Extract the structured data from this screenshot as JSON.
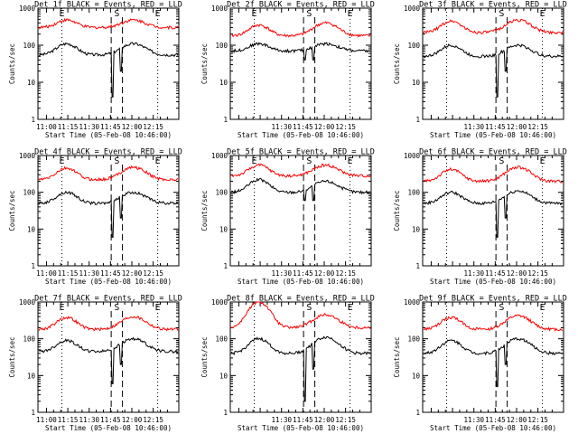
{
  "figure": {
    "background": "#ffffff",
    "colors": {
      "events": "#000000",
      "lld": "#ff0000",
      "axes": "#000000"
    }
  },
  "chart_data": [
    {
      "type": "line",
      "title": "Det 1f BLACK = Events, RED = LLD",
      "xlabel": "Start Time (05-Feb-08 10:46:00)",
      "ylabel": "Counts/sec",
      "x_ticks": [
        "11:00",
        "11:15",
        "11:30",
        "11:45",
        "12:00",
        "12:15"
      ],
      "y_ticks": [
        "1",
        "10",
        "100",
        "1000"
      ],
      "yscale": "log",
      "ylim": [
        1,
        1000
      ],
      "markers": [
        "E",
        "S",
        "E"
      ],
      "series": [
        {
          "color": "#000000",
          "base": 55,
          "peaks": [
            110,
            110
          ],
          "dips": [
            4,
            20
          ]
        },
        {
          "color": "#ff0000",
          "base": 300,
          "peaks": [
            480,
            480
          ],
          "dips": []
        }
      ]
    },
    {
      "type": "line",
      "title": "Det 2f BLACK = Events, RED = LLD",
      "xlabel": "Start Time (05-Feb-08 10:46:00)",
      "ylabel": "Counts/sec",
      "x_ticks": [
        "11:30",
        "11:45",
        "12:00",
        "12:15"
      ],
      "y_ticks": [
        "1",
        "10",
        "100",
        "1000"
      ],
      "yscale": "log",
      "ylim": [
        1,
        1000
      ],
      "markers": [
        "E",
        "S",
        "E"
      ],
      "series": [
        {
          "color": "#000000",
          "base": 70,
          "peaks": [
            110,
            110
          ],
          "dips": [
            40,
            40
          ]
        },
        {
          "color": "#ff0000",
          "base": 180,
          "peaks": [
            350,
            400
          ],
          "dips": []
        }
      ]
    },
    {
      "type": "line",
      "title": "Det 3f BLACK = Events, RED = LLD",
      "xlabel": "Start Time (05-Feb-08 10:46:00)",
      "ylabel": "Counts/sec",
      "x_ticks": [
        "11:30",
        "11:45",
        "12:00",
        "12:15"
      ],
      "y_ticks": [
        "1",
        "10",
        "100",
        "1000"
      ],
      "yscale": "log",
      "ylim": [
        1,
        1000
      ],
      "markers": [
        "S",
        "E"
      ],
      "series": [
        {
          "color": "#000000",
          "base": 50,
          "peaks": [
            100,
            100
          ],
          "dips": [
            4,
            20
          ]
        },
        {
          "color": "#ff0000",
          "base": 220,
          "peaks": [
            450,
            480
          ],
          "dips": []
        }
      ]
    },
    {
      "type": "line",
      "title": "Det 4f BLACK = Events, RED = LLD",
      "xlabel": "Start Time (05-Feb-08 10:46:00)",
      "ylabel": "Counts/sec",
      "x_ticks": [
        "11:00",
        "11:15",
        "11:30",
        "11:45",
        "12:00",
        "12:15"
      ],
      "y_ticks": [
        "1",
        "10",
        "100",
        "1000"
      ],
      "yscale": "log",
      "ylim": [
        1,
        1000
      ],
      "markers": [
        "E",
        "S",
        "E"
      ],
      "series": [
        {
          "color": "#000000",
          "base": 50,
          "peaks": [
            100,
            100
          ],
          "dips": [
            6,
            20
          ]
        },
        {
          "color": "#ff0000",
          "base": 220,
          "peaks": [
            450,
            480
          ],
          "dips": []
        }
      ]
    },
    {
      "type": "line",
      "title": "Det 5f BLACK = Events, RED = LLD",
      "xlabel": "Start Time (05-Feb-08 10:46:00)",
      "ylabel": "Counts/sec",
      "x_ticks": [
        "11:30",
        "11:45",
        "12:00",
        "12:15"
      ],
      "y_ticks": [
        "1",
        "10",
        "100",
        "1000"
      ],
      "yscale": "log",
      "ylim": [
        1,
        1000
      ],
      "markers": [
        "E",
        "S",
        "E"
      ],
      "series": [
        {
          "color": "#000000",
          "base": 100,
          "peaks": [
            220,
            200
          ],
          "dips": [
            60,
            60
          ]
        },
        {
          "color": "#ff0000",
          "base": 280,
          "peaks": [
            550,
            550
          ],
          "dips": []
        }
      ]
    },
    {
      "type": "line",
      "title": "Det 6f BLACK = Events, RED = LLD",
      "xlabel": "Start Time (05-Feb-08 10:46:00)",
      "ylabel": "Counts/sec",
      "x_ticks": [
        "11:30",
        "11:45",
        "12:00",
        "12:15"
      ],
      "y_ticks": [
        "1",
        "10",
        "100",
        "1000"
      ],
      "yscale": "log",
      "ylim": [
        1,
        1000
      ],
      "markers": [
        "S",
        "E"
      ],
      "series": [
        {
          "color": "#000000",
          "base": 50,
          "peaks": [
            100,
            110
          ],
          "dips": [
            6,
            20
          ]
        },
        {
          "color": "#ff0000",
          "base": 200,
          "peaks": [
            420,
            480
          ],
          "dips": []
        }
      ]
    },
    {
      "type": "line",
      "title": "Det 7f BLACK = Events, RED = LLD",
      "xlabel": "Start Time (05-Feb-08 10:46:00)",
      "ylabel": "Counts/sec",
      "x_ticks": [
        "11:00",
        "11:15",
        "11:30",
        "11:45",
        "12:00",
        "12:15"
      ],
      "y_ticks": [
        "1",
        "10",
        "100",
        "1000"
      ],
      "yscale": "log",
      "ylim": [
        1,
        1000
      ],
      "markers": [
        "E",
        "S",
        "E"
      ],
      "series": [
        {
          "color": "#000000",
          "base": 45,
          "peaks": [
            90,
            100
          ],
          "dips": [
            6,
            20
          ]
        },
        {
          "color": "#ff0000",
          "base": 180,
          "peaks": [
            380,
            400
          ],
          "dips": []
        }
      ]
    },
    {
      "type": "line",
      "title": "Det 8f BLACK = Events, RED = LLD",
      "xlabel": "Start Time (05-Feb-08 10:46:00)",
      "ylabel": "Counts/sec",
      "x_ticks": [
        "11:30",
        "11:45",
        "12:00",
        "12:15"
      ],
      "y_ticks": [
        "1",
        "10",
        "100",
        "1000"
      ],
      "yscale": "log",
      "ylim": [
        1,
        1000
      ],
      "markers": [
        "S",
        "E"
      ],
      "series": [
        {
          "color": "#000000",
          "base": 40,
          "peaks": [
            100,
            110
          ],
          "dips": [
            2,
            15
          ]
        },
        {
          "color": "#ff0000",
          "base": 200,
          "peaks": [
            1000,
            450
          ],
          "dips": []
        }
      ]
    },
    {
      "type": "line",
      "title": "Det 9f BLACK = Events, RED = LLD",
      "xlabel": "Start Time (05-Feb-08 10:46:00)",
      "ylabel": "Counts/sec",
      "x_ticks": [
        "11:30",
        "11:45",
        "12:00",
        "12:15"
      ],
      "y_ticks": [
        "1",
        "10",
        "100",
        "1000"
      ],
      "yscale": "log",
      "ylim": [
        1,
        1000
      ],
      "markers": [
        "S",
        "E"
      ],
      "series": [
        {
          "color": "#000000",
          "base": 40,
          "peaks": [
            90,
            100
          ],
          "dips": [
            5,
            20
          ]
        },
        {
          "color": "#ff0000",
          "base": 180,
          "peaks": [
            380,
            420
          ],
          "dips": []
        }
      ]
    }
  ]
}
